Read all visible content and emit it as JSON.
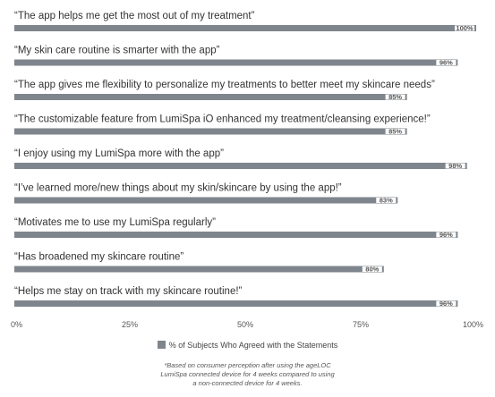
{
  "chart_data": {
    "type": "bar",
    "orientation": "horizontal",
    "categories": [
      "“The app helps me get the most out of my treatment”",
      "“My skin care routine is smarter with the app”",
      "“The app gives me flexibility to personalize my treatments to better meet my skincare needs”",
      "“The customizable feature from LumiSpa iO enhanced my treatment/cleansing experience!”",
      "“I enjoy using my LumiSpa more with the app”",
      "“I’ve learned more/new things about my skin/skincare by using the app!”",
      "“Motivates me to use my LumiSpa regularly”",
      "“Has broadened my skincare routine”",
      "“Helps me stay on track with my skincare routine!”"
    ],
    "values": [
      100,
      96,
      85,
      85,
      98,
      83,
      96,
      80,
      96
    ],
    "data_labels": [
      "100%",
      "96%",
      "85%",
      "85%",
      "98%",
      "83%",
      "96%",
      "80%",
      "96%"
    ],
    "series": [
      {
        "name": "% of Subjects Who Agreed with the Statements",
        "values": [
          100,
          96,
          85,
          85,
          98,
          83,
          96,
          80,
          96
        ]
      }
    ],
    "xlim": [
      0,
      100
    ],
    "x_ticks": [
      0,
      25,
      50,
      75,
      100
    ],
    "x_tick_labels": [
      "0%",
      "25%",
      "50%",
      "75%",
      "100%"
    ],
    "grid": false,
    "legend_position": "bottom",
    "bar_color": "#7f858d"
  },
  "footnote": {
    "lines": [
      "*Based on consumer perception after using the ageLOC",
      "LumiSpa connected device for 4 weeks compared to using",
      "a non-connected device for 4 weeks."
    ]
  }
}
